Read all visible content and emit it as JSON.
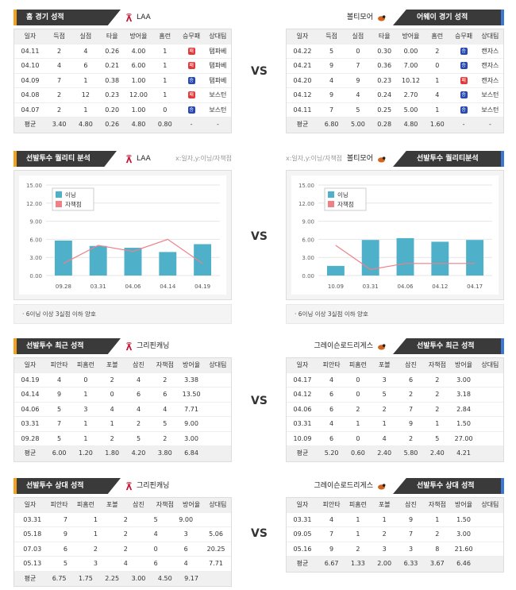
{
  "vs_label": "VS",
  "panel1": {
    "left": {
      "tab": "홈 경기 성적",
      "team": "LAA",
      "headers": [
        "일자",
        "득점",
        "실점",
        "타율",
        "방어율",
        "홈런",
        "승무패",
        "상대팀"
      ],
      "rows": [
        [
          "04.11",
          "2",
          "4",
          "0.26",
          "4.00",
          "1",
          "패",
          "탬파베"
        ],
        [
          "04.10",
          "4",
          "6",
          "0.21",
          "6.00",
          "1",
          "패",
          "탬파베"
        ],
        [
          "04.09",
          "7",
          "1",
          "0.38",
          "1.00",
          "1",
          "승",
          "탬파베"
        ],
        [
          "04.08",
          "2",
          "12",
          "0.23",
          "12.00",
          "1",
          "패",
          "보스턴"
        ],
        [
          "04.07",
          "2",
          "1",
          "0.20",
          "1.00",
          "0",
          "승",
          "보스턴"
        ]
      ],
      "avg": [
        "평균",
        "3.40",
        "4.80",
        "0.26",
        "4.80",
        "0.80",
        "-",
        "-"
      ]
    },
    "right": {
      "tab": "어웨이 경기 성적",
      "team": "볼티모어",
      "headers": [
        "일자",
        "득점",
        "실점",
        "타율",
        "방어율",
        "홈런",
        "승무패",
        "상대팀"
      ],
      "rows": [
        [
          "04.22",
          "5",
          "0",
          "0.30",
          "0.00",
          "2",
          "승",
          "캔자스"
        ],
        [
          "04.21",
          "9",
          "7",
          "0.36",
          "7.00",
          "0",
          "승",
          "캔자스"
        ],
        [
          "04.20",
          "4",
          "9",
          "0.23",
          "10.12",
          "1",
          "패",
          "캔자스"
        ],
        [
          "04.12",
          "9",
          "4",
          "0.24",
          "2.70",
          "4",
          "승",
          "보스턴"
        ],
        [
          "04.11",
          "7",
          "5",
          "0.25",
          "5.00",
          "1",
          "승",
          "보스턴"
        ]
      ],
      "avg": [
        "평균",
        "6.80",
        "5.00",
        "0.28",
        "4.80",
        "1.60",
        "-",
        "-"
      ]
    }
  },
  "panel2": {
    "left": {
      "tab": "선발투수 퀄리티 분석",
      "team": "LAA",
      "sub": "x:일자,y:이닝/자책점",
      "note": "· 6이닝 이상 3실점 이하 양호"
    },
    "right": {
      "tab": "선발투수 퀄리티분석",
      "team": "볼티모어",
      "sub": "x:일자,y:이닝/자책점",
      "note": "· 6이닝 이상 3실점 이하 양호"
    }
  },
  "chart_data": [
    {
      "type": "bar",
      "categories": [
        "09.28",
        "03.31",
        "04.06",
        "04.14",
        "04.19"
      ],
      "series": [
        {
          "name": "이닝",
          "type": "bar",
          "values": [
            5.8,
            4.9,
            4.6,
            3.9,
            5.2
          ],
          "color": "#4eb1c9"
        },
        {
          "name": "자책점",
          "type": "line",
          "values": [
            2,
            5,
            4,
            6,
            2
          ],
          "color": "#f07f88"
        }
      ],
      "ylim": [
        0,
        15
      ],
      "yticks": [
        "15.00",
        "12.00",
        "9.00",
        "6.00",
        "3.00",
        "0.00"
      ]
    },
    {
      "type": "bar",
      "categories": [
        "10.09",
        "03.31",
        "04.06",
        "04.12",
        "04.17"
      ],
      "series": [
        {
          "name": "이닝",
          "type": "bar",
          "values": [
            1.6,
            5.9,
            6.2,
            5.6,
            5.9
          ],
          "color": "#4eb1c9"
        },
        {
          "name": "자책점",
          "type": "line",
          "values": [
            5,
            1,
            2,
            2,
            2
          ],
          "color": "#f07f88"
        }
      ],
      "ylim": [
        0,
        15
      ],
      "yticks": [
        "15.00",
        "12.00",
        "9.00",
        "6.00",
        "3.00",
        "0.00"
      ]
    }
  ],
  "panel3": {
    "left": {
      "tab": "선발투수 최근 성적",
      "team": "그리핀캐닝",
      "headers": [
        "일자",
        "피안타",
        "피홈런",
        "포볼",
        "삼진",
        "자책점",
        "방어율",
        "상대팀"
      ],
      "rows": [
        [
          "04.19",
          "4",
          "0",
          "2",
          "4",
          "2",
          "3.38",
          ""
        ],
        [
          "04.14",
          "9",
          "1",
          "0",
          "6",
          "6",
          "13.50",
          ""
        ],
        [
          "04.06",
          "5",
          "3",
          "4",
          "4",
          "4",
          "7.71",
          ""
        ],
        [
          "03.31",
          "7",
          "1",
          "1",
          "2",
          "5",
          "9.00",
          ""
        ],
        [
          "09.28",
          "5",
          "1",
          "2",
          "5",
          "2",
          "3.00",
          ""
        ]
      ],
      "avg": [
        "평균",
        "6.00",
        "1.20",
        "1.80",
        "4.20",
        "3.80",
        "6.84",
        ""
      ]
    },
    "right": {
      "tab": "선발투수 최근 성적",
      "team": "그레이슨로드리게스",
      "headers": [
        "일자",
        "피안타",
        "피홈런",
        "포볼",
        "삼진",
        "자책점",
        "방어율",
        "상대팀"
      ],
      "rows": [
        [
          "04.17",
          "4",
          "0",
          "3",
          "6",
          "2",
          "3.00",
          ""
        ],
        [
          "04.12",
          "6",
          "0",
          "5",
          "2",
          "2",
          "3.18",
          ""
        ],
        [
          "04.06",
          "6",
          "2",
          "2",
          "7",
          "2",
          "2.84",
          ""
        ],
        [
          "03.31",
          "4",
          "1",
          "1",
          "9",
          "1",
          "1.50",
          ""
        ],
        [
          "10.09",
          "6",
          "0",
          "4",
          "2",
          "5",
          "27.00",
          ""
        ]
      ],
      "avg": [
        "평균",
        "5.20",
        "0.60",
        "2.40",
        "5.80",
        "2.40",
        "4.21",
        ""
      ]
    }
  },
  "panel4": {
    "left": {
      "tab": "선발투수 상대 성적",
      "team": "그리핀캐닝",
      "headers": [
        "일자",
        "피안타",
        "피홈런",
        "포볼",
        "삼진",
        "자책점",
        "방어율",
        "상대팀"
      ],
      "rows": [
        [
          "03.31",
          "7",
          "1",
          "2",
          "5",
          "9.00",
          ""
        ],
        [
          "05.18",
          "9",
          "1",
          "2",
          "4",
          "3",
          "5.06"
        ],
        [
          "07.03",
          "6",
          "2",
          "2",
          "0",
          "6",
          "20.25"
        ],
        [
          "05.13",
          "5",
          "3",
          "4",
          "6",
          "4",
          "7.71"
        ]
      ],
      "avg": [
        "평균",
        "6.75",
        "1.75",
        "2.25",
        "3.00",
        "4.50",
        "9.17",
        ""
      ]
    },
    "right": {
      "tab": "선발투수 상대 성적",
      "team": "그레이슨로드리게스",
      "headers": [
        "일자",
        "피안타",
        "피홈런",
        "포볼",
        "삼진",
        "자책점",
        "방어율",
        "상대팀"
      ],
      "rows": [
        [
          "03.31",
          "4",
          "1",
          "1",
          "9",
          "1",
          "1.50",
          ""
        ],
        [
          "09.05",
          "7",
          "1",
          "2",
          "7",
          "2",
          "3.00",
          ""
        ],
        [
          "05.16",
          "9",
          "2",
          "3",
          "3",
          "8",
          "21.60",
          ""
        ]
      ],
      "avg": [
        "평균",
        "6.67",
        "1.33",
        "2.00",
        "6.33",
        "3.67",
        "6.46",
        ""
      ]
    }
  }
}
